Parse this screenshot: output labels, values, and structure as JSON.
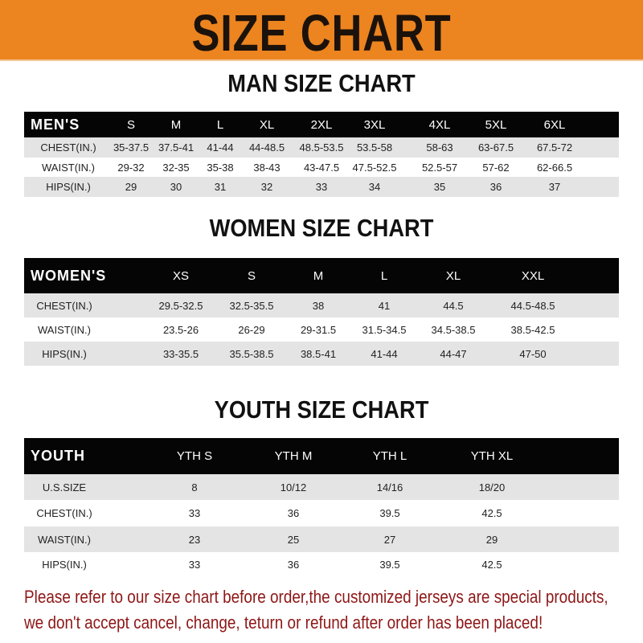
{
  "banner": {
    "title": "SIZE CHART",
    "color": "#ec8420"
  },
  "men": {
    "title": "MAN SIZE CHART",
    "header": [
      "MEN'S",
      "S",
      "M",
      "L",
      "XL",
      "2XL",
      "3XL",
      "4XL",
      "5XL",
      "6XL"
    ],
    "rows": [
      [
        "CHEST(IN.)",
        "35-37.5",
        "37.5-41",
        "41-44",
        "44-48.5",
        "48.5-53.5",
        "53.5-58",
        "58-63",
        "63-67.5",
        "67.5-72"
      ],
      [
        "WAIST(IN.)",
        "29-32",
        "32-35",
        "35-38",
        "38-43",
        "43-47.5",
        "47.5-52.5",
        "52.5-57",
        "57-62",
        "62-66.5"
      ],
      [
        "HIPS(IN.)",
        "29",
        "30",
        "31",
        "32",
        "33",
        "34",
        "35",
        "36",
        "37"
      ]
    ]
  },
  "women": {
    "title": "WOMEN SIZE CHART",
    "header": [
      "WOMEN'S",
      "XS",
      "S",
      "M",
      "L",
      "XL",
      "XXL"
    ],
    "rows": [
      [
        "CHEST(IN.)",
        "29.5-32.5",
        "32.5-35.5",
        "38",
        "41",
        "44.5",
        "44.5-48.5"
      ],
      [
        "WAIST(IN.)",
        "23.5-26",
        "26-29",
        "29-31.5",
        "31.5-34.5",
        "34.5-38.5",
        "38.5-42.5"
      ],
      [
        "HIPS(IN.)",
        "33-35.5",
        "35.5-38.5",
        "38.5-41",
        "41-44",
        "44-47",
        "47-50"
      ]
    ]
  },
  "youth": {
    "title": "YOUTH SIZE CHART",
    "header": [
      "YOUTH",
      "YTH S",
      "YTH M",
      "YTH L",
      "YTH XL"
    ],
    "rows": [
      [
        "U.S.SIZE",
        "8",
        "10/12",
        "14/16",
        "18/20"
      ],
      [
        "CHEST(IN.)",
        "33",
        "36",
        "39.5",
        "42.5"
      ],
      [
        "WAIST(IN.)",
        "23",
        "25",
        "27",
        "29"
      ],
      [
        "HIPS(IN.)",
        "33",
        "36",
        "39.5",
        "42.5"
      ]
    ]
  },
  "notice": {
    "line1": "Please refer to our size chart before order,the customized jerseys are special products,",
    "line2": "we don't accept cancel, change, teturn or refund after order has been placed!",
    "color": "#8e1717"
  }
}
